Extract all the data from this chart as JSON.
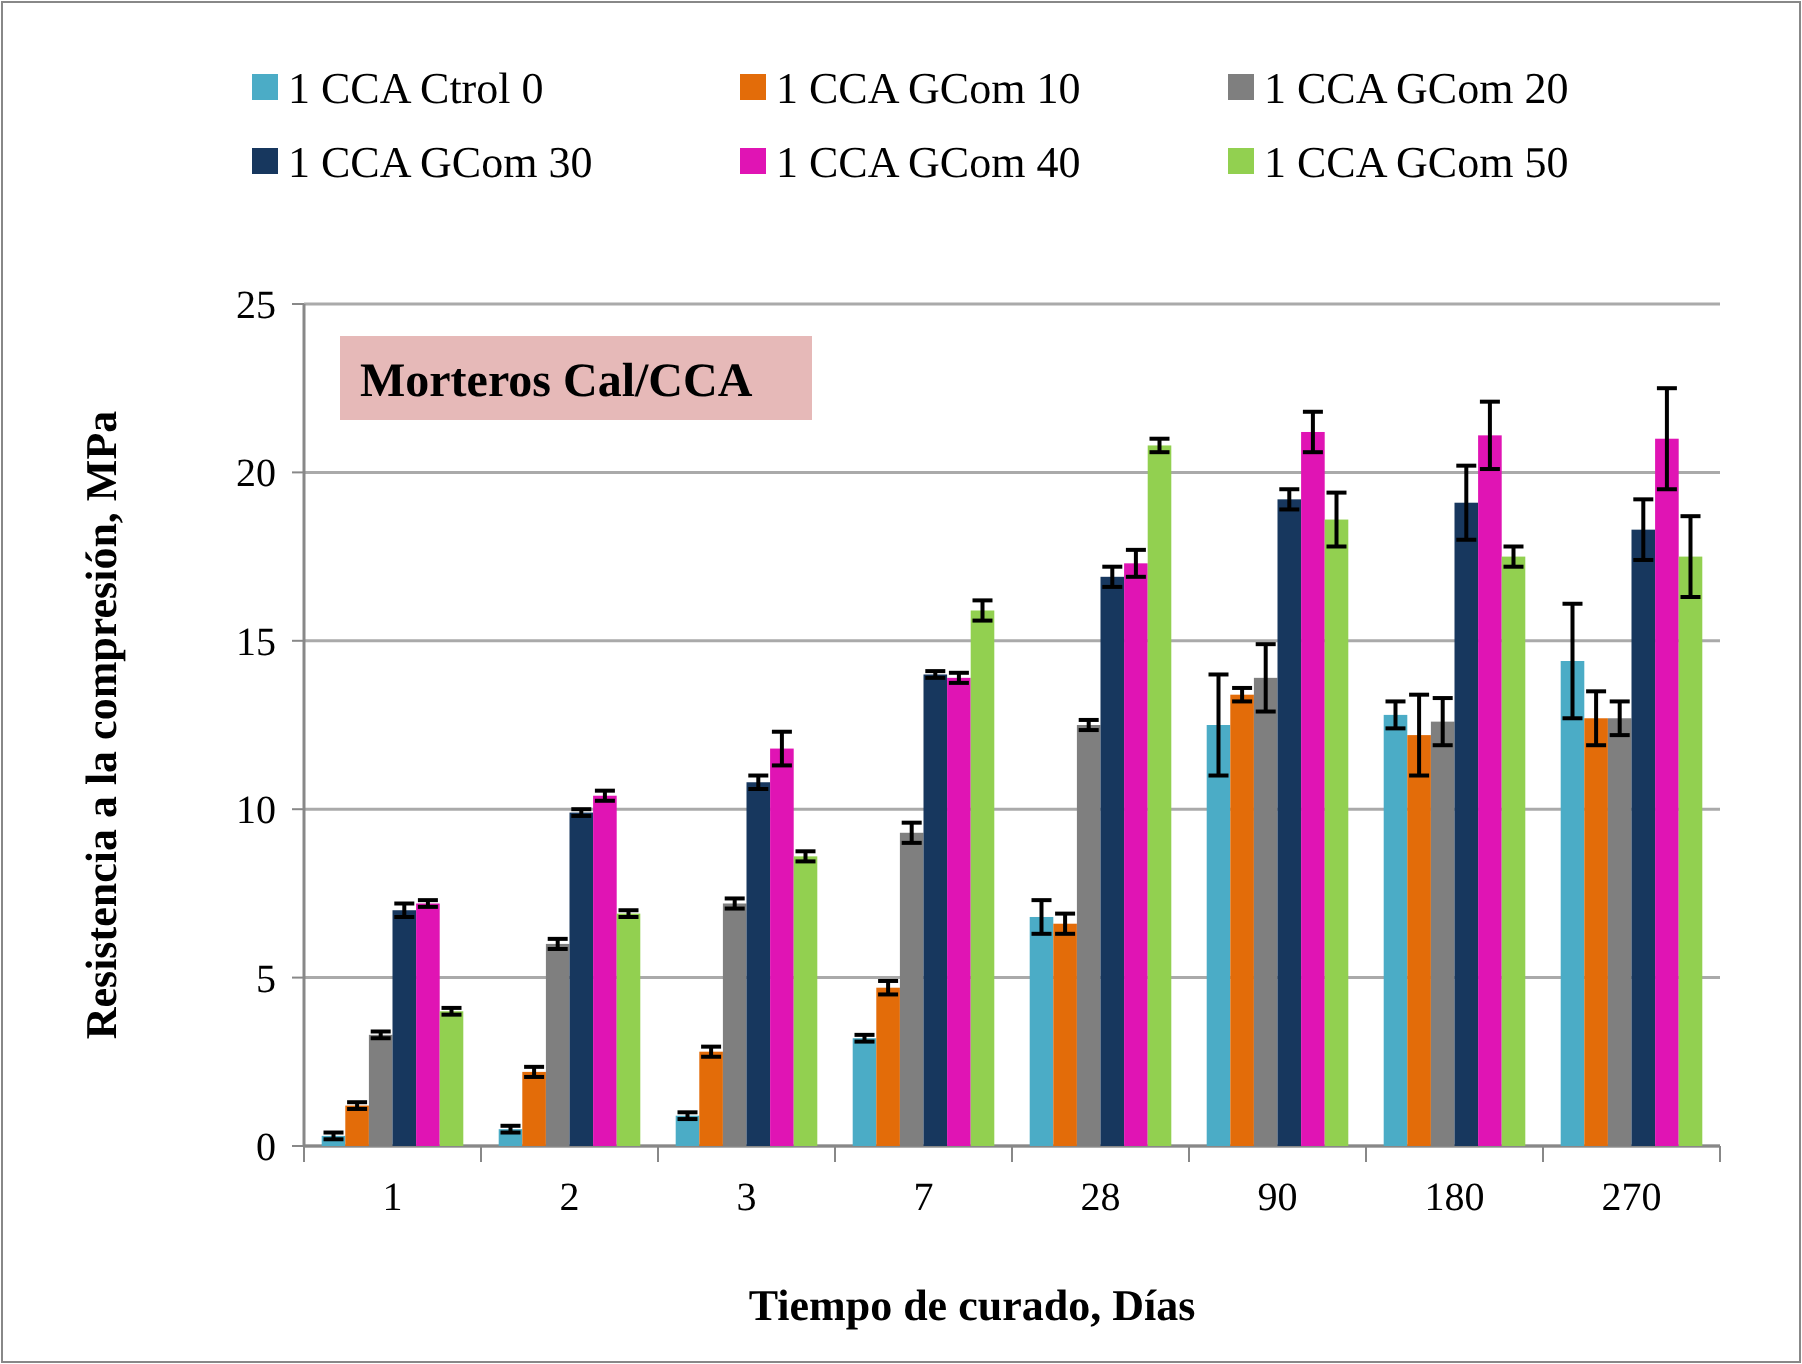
{
  "chart_data": {
    "type": "bar",
    "xlabel": "Tiempo de curado,  Días",
    "ylabel": "Resistencia a la compresión,  MPa",
    "annotations": [
      "Morteros Cal/CCA"
    ],
    "categories": [
      "1",
      "2",
      "3",
      "7",
      "28",
      "90",
      "180",
      "270"
    ],
    "ylim": [
      0,
      25
    ],
    "yticks": [
      0,
      5,
      10,
      15,
      20,
      25
    ],
    "grid": "y",
    "legend": "top",
    "series": [
      {
        "name": "1 CCA Ctrol 0",
        "color": "#4bacc6",
        "values": [
          0.3,
          0.5,
          0.9,
          3.2,
          6.8,
          12.5,
          12.8,
          14.4
        ],
        "errors": [
          0.1,
          0.1,
          0.1,
          0.1,
          0.5,
          1.5,
          0.4,
          1.7
        ]
      },
      {
        "name": "1 CCA GCom 10",
        "color": "#e36c09",
        "values": [
          1.2,
          2.2,
          2.8,
          4.7,
          6.6,
          13.4,
          12.2,
          12.7
        ],
        "errors": [
          0.1,
          0.15,
          0.15,
          0.2,
          0.3,
          0.2,
          1.2,
          0.8
        ]
      },
      {
        "name": "1 CCA GCom 20",
        "color": "#7f7f7f",
        "values": [
          3.3,
          6.0,
          7.2,
          9.3,
          12.5,
          13.9,
          12.6,
          12.7
        ],
        "errors": [
          0.1,
          0.15,
          0.15,
          0.3,
          0.15,
          1.0,
          0.7,
          0.5
        ]
      },
      {
        "name": "1 CCA GCom 30",
        "color": "#17375e",
        "values": [
          7.0,
          9.9,
          10.8,
          14.0,
          16.9,
          19.2,
          19.1,
          18.3
        ],
        "errors": [
          0.2,
          0.1,
          0.2,
          0.1,
          0.3,
          0.3,
          1.1,
          0.9
        ]
      },
      {
        "name": "1 CCA GCom 40",
        "color": "#e014b4",
        "values": [
          7.2,
          10.4,
          11.8,
          13.9,
          17.3,
          21.2,
          21.1,
          21.0
        ],
        "errors": [
          0.1,
          0.15,
          0.5,
          0.15,
          0.4,
          0.6,
          1.0,
          1.5
        ]
      },
      {
        "name": "1 CCA GCom 50",
        "color": "#92d050",
        "values": [
          4.0,
          6.9,
          8.6,
          15.9,
          20.8,
          18.6,
          17.5,
          17.5
        ],
        "errors": [
          0.1,
          0.1,
          0.15,
          0.3,
          0.2,
          0.8,
          0.3,
          1.2
        ]
      }
    ]
  }
}
